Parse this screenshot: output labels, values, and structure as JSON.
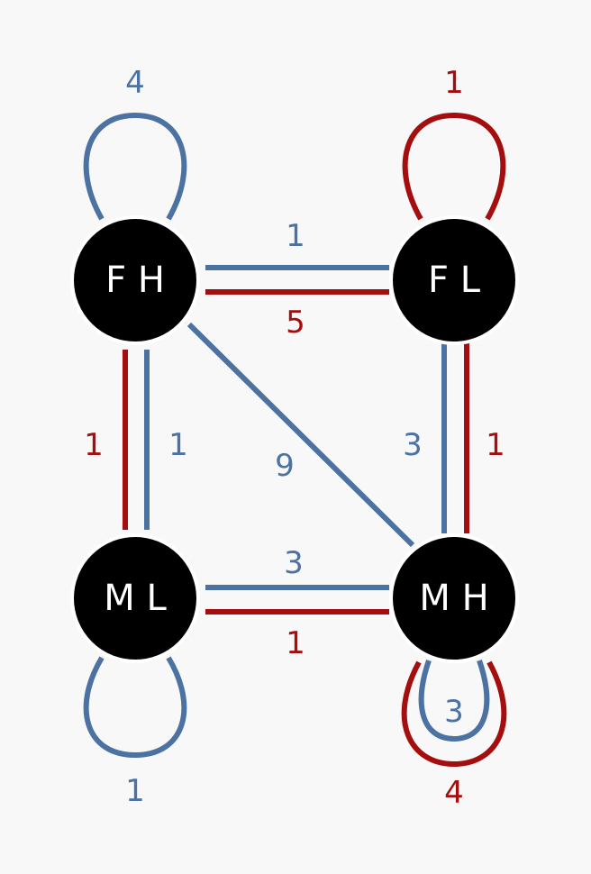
{
  "colors": {
    "blue": "#4b72a0",
    "red": "#a50e0e",
    "node": "#000000",
    "background": "#f8f8f9"
  },
  "nodes": {
    "fh": "F H",
    "fl": "F L",
    "ml": "M L",
    "mh": "M H"
  },
  "edges": [
    {
      "from": "F H",
      "to": "F H",
      "color": "blue",
      "label": "4"
    },
    {
      "from": "F L",
      "to": "F L",
      "color": "red",
      "label": "1"
    },
    {
      "from": "F H",
      "to": "F L",
      "color": "blue",
      "label": "1"
    },
    {
      "from": "F H",
      "to": "F L",
      "color": "red",
      "label": "5"
    },
    {
      "from": "F H",
      "to": "M L",
      "color": "red",
      "label": "1"
    },
    {
      "from": "F H",
      "to": "M L",
      "color": "blue",
      "label": "1"
    },
    {
      "from": "F H",
      "to": "M H",
      "color": "blue",
      "label": "9"
    },
    {
      "from": "F L",
      "to": "M H",
      "color": "blue",
      "label": "3"
    },
    {
      "from": "F L",
      "to": "M H",
      "color": "red",
      "label": "1"
    },
    {
      "from": "M L",
      "to": "M H",
      "color": "blue",
      "label": "3"
    },
    {
      "from": "M L",
      "to": "M H",
      "color": "red",
      "label": "1"
    },
    {
      "from": "M L",
      "to": "M L",
      "color": "blue",
      "label": "1"
    },
    {
      "from": "M H",
      "to": "M H",
      "color": "blue",
      "label": "3"
    },
    {
      "from": "M H",
      "to": "M H",
      "color": "red",
      "label": "4"
    }
  ]
}
